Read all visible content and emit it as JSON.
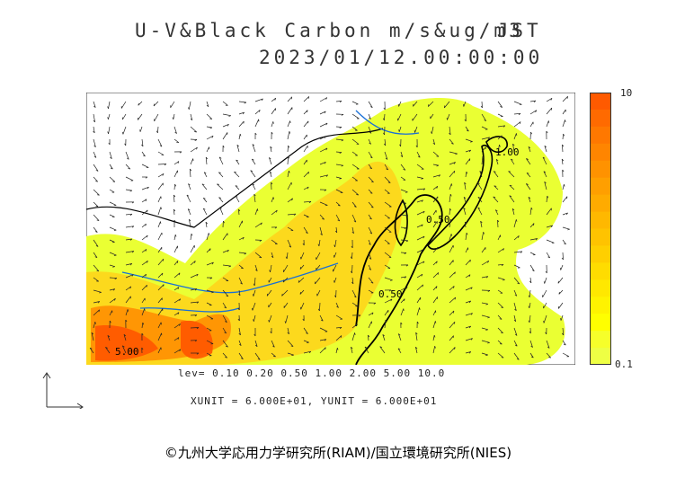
{
  "title": {
    "line1": "U-V&Black Carbon m/s&ug/m3",
    "line1_suffix": "JST",
    "line2": "2023/01/12.00:00:00"
  },
  "levels_text": "lev= 0.10 0.20 0.50 1.00 2.00 5.00 10.0",
  "units_text": "XUNIT = 6.000E+01, YUNIT = 6.000E+01",
  "colorbar": {
    "max_label": "10",
    "min_label": "0.1",
    "colors": [
      "#ff5a00",
      "#ff6a00",
      "#ff7800",
      "#ff8500",
      "#ff9200",
      "#ff9f00",
      "#ffab00",
      "#ffb800",
      "#ffc300",
      "#ffcf00",
      "#ffdc00",
      "#ffe800",
      "#fff300",
      "#ffff00",
      "#f6ff2a",
      "#eeff44"
    ]
  },
  "contour_labels": [
    "5.00",
    "0.50",
    "0.50",
    "1.00"
  ],
  "colors": {
    "land_line": "#000000",
    "river": "#1a6fd6",
    "low_fill": "#eaff33",
    "mid_fill": "#ffd21a",
    "high_fill": "#ff8a00",
    "peak_fill": "#ff5500"
  },
  "credit": "©九州大学応用力学研究所(RIAM)/国立環境研究所(NIES)"
}
